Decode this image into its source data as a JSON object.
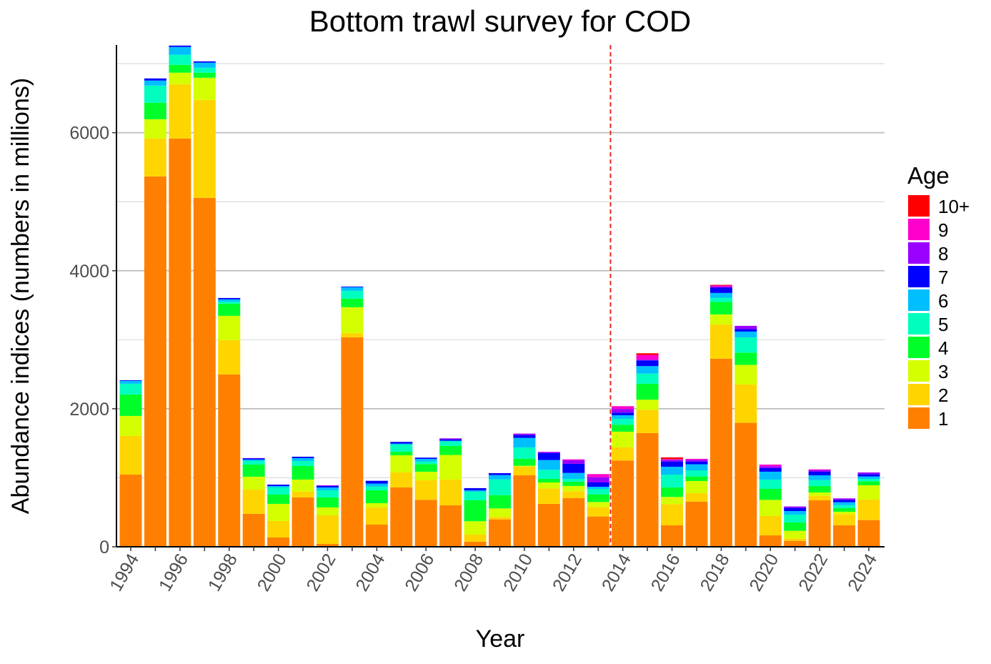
{
  "chart_data": {
    "type": "bar",
    "stacked": true,
    "title": "Bottom trawl survey for COD",
    "xlabel": "Year",
    "ylabel": "Abundance indices (numbers in millions)",
    "ylim": [
      0,
      7270
    ],
    "yticks": [
      0,
      2000,
      4000,
      6000
    ],
    "grid": true,
    "legend_title": "Age",
    "legend_placement": "right",
    "reference_line": {
      "x": 2013.5,
      "color": "#E8291C",
      "style": "dashed"
    },
    "categories": [
      1994,
      1995,
      1996,
      1997,
      1998,
      1999,
      2000,
      2001,
      2002,
      2003,
      2004,
      2005,
      2006,
      2007,
      2008,
      2009,
      2010,
      2011,
      2012,
      2013,
      2014,
      2015,
      2016,
      2017,
      2018,
      2019,
      2020,
      2021,
      2022,
      2023,
      2024
    ],
    "xtick_labels": [
      "1994",
      "1996",
      "1998",
      "2000",
      "2002",
      "2004",
      "2006",
      "2008",
      "2010",
      "2012",
      "2014",
      "2016",
      "2018",
      "2020",
      "2022",
      "2024"
    ],
    "series": [
      {
        "name": "1",
        "color": "#FF8000",
        "values": [
          1046,
          5366,
          5915,
          5056,
          2497,
          477,
          135,
          715,
          41,
          3035,
          321,
          860,
          681,
          601,
          73,
          397,
          1036,
          622,
          704,
          439,
          1250,
          1647,
          311,
          653,
          2725,
          1796,
          166,
          86,
          673,
          311,
          387
        ]
      },
      {
        "name": "2",
        "color": "#FFD500",
        "values": [
          560,
          549,
          788,
          1419,
          497,
          352,
          238,
          83,
          415,
          63,
          249,
          217,
          282,
          373,
          103,
          35,
          128,
          224,
          101,
          138,
          190,
          339,
          307,
          124,
          497,
          556,
          279,
          35,
          63,
          162,
          297
        ]
      },
      {
        "name": "3",
        "color": "#D4FF00",
        "values": [
          290,
          280,
          166,
          321,
          352,
          186,
          249,
          176,
          114,
          373,
          62,
          249,
          125,
          356,
          194,
          124,
          10,
          86,
          76,
          72,
          228,
          145,
          104,
          176,
          145,
          283,
          235,
          110,
          51,
          35,
          207
        ]
      },
      {
        "name": "4",
        "color": "#00FF2A",
        "values": [
          311,
          239,
          114,
          73,
          176,
          176,
          134,
          197,
          145,
          124,
          186,
          52,
          110,
          131,
          303,
          193,
          103,
          52,
          62,
          111,
          100,
          231,
          138,
          66,
          180,
          179,
          159,
          121,
          94,
          52,
          59
        ]
      },
      {
        "name": "5",
        "color": "#00FFBF",
        "values": [
          155,
          248,
          145,
          72,
          31,
          52,
          104,
          72,
          103,
          114,
          55,
          103,
          38,
          66,
          125,
          228,
          163,
          131,
          41,
          79,
          86,
          148,
          186,
          89,
          62,
          221,
          135,
          114,
          86,
          44,
          34
        ]
      },
      {
        "name": "6",
        "color": "#00BFFF",
        "values": [
          42,
          73,
          114,
          73,
          32,
          21,
          21,
          42,
          42,
          52,
          42,
          14,
          38,
          10,
          20,
          62,
          138,
          142,
          86,
          31,
          52,
          108,
          114,
          87,
          69,
          83,
          114,
          52,
          69,
          42,
          35
        ]
      },
      {
        "name": "7",
        "color": "#0000FF",
        "values": [
          10,
          31,
          20,
          20,
          20,
          15,
          20,
          20,
          21,
          10,
          41,
          25,
          18,
          20,
          32,
          28,
          41,
          100,
          132,
          62,
          38,
          83,
          76,
          41,
          76,
          35,
          52,
          45,
          52,
          34,
          34
        ]
      },
      {
        "name": "8",
        "color": "#9900FF",
        "values": [
          0,
          0,
          0,
          0,
          0,
          6,
          0,
          0,
          10,
          0,
          0,
          0,
          0,
          14,
          0,
          0,
          21,
          18,
          52,
          76,
          52,
          10,
          25,
          24,
          17,
          48,
          27,
          21,
          24,
          21,
          24
        ]
      },
      {
        "name": "9",
        "color": "#FF00CC",
        "values": [
          0,
          0,
          0,
          0,
          0,
          0,
          0,
          0,
          0,
          0,
          0,
          0,
          0,
          0,
          0,
          0,
          0,
          0,
          13,
          45,
          41,
          69,
          10,
          14,
          14,
          0,
          24,
          0,
          10,
          0,
          0
        ]
      },
      {
        "name": "10+",
        "color": "#FF0000",
        "values": [
          0,
          0,
          0,
          0,
          0,
          0,
          0,
          0,
          0,
          0,
          0,
          0,
          0,
          0,
          0,
          0,
          0,
          0,
          0,
          0,
          0,
          24,
          24,
          0,
          10,
          0,
          0,
          0,
          0,
          0,
          0
        ]
      }
    ]
  }
}
